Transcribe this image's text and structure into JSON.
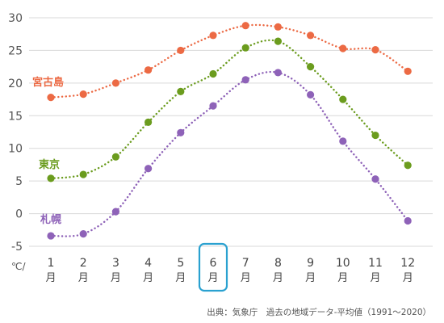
{
  "chart_data": {
    "type": "line",
    "unit_label": "℃/",
    "categories": [
      {
        "num": "1",
        "unit": "月"
      },
      {
        "num": "2",
        "unit": "月"
      },
      {
        "num": "3",
        "unit": "月"
      },
      {
        "num": "4",
        "unit": "月"
      },
      {
        "num": "5",
        "unit": "月"
      },
      {
        "num": "6",
        "unit": "月"
      },
      {
        "num": "7",
        "unit": "月"
      },
      {
        "num": "8",
        "unit": "月"
      },
      {
        "num": "9",
        "unit": "月"
      },
      {
        "num": "10",
        "unit": "月"
      },
      {
        "num": "11",
        "unit": "月"
      },
      {
        "num": "12",
        "unit": "月"
      }
    ],
    "highlight_index": 5,
    "highlight_color": "#2aa1d0",
    "ylim": [
      -5,
      30
    ],
    "yticks": [
      "-5",
      "0",
      "5",
      "10",
      "15",
      "20",
      "25",
      "30"
    ],
    "grid": true,
    "series": [
      {
        "name": "宮古島",
        "color": "#ec6a44",
        "values": [
          17.8,
          18.3,
          20.0,
          22.0,
          25.0,
          27.3,
          28.8,
          28.6,
          27.3,
          25.3,
          25.1,
          21.8
        ]
      },
      {
        "name": "東京",
        "color": "#6b9c1e",
        "values": [
          5.4,
          6.0,
          8.7,
          14.0,
          18.7,
          21.4,
          25.4,
          26.4,
          22.5,
          17.5,
          12.0,
          7.4
        ]
      },
      {
        "name": "札幌",
        "color": "#8e62b8",
        "values": [
          -3.4,
          -3.1,
          0.3,
          6.9,
          12.4,
          16.5,
          20.5,
          21.6,
          18.2,
          11.1,
          5.3,
          -1.1
        ]
      }
    ],
    "source": "出典：気象庁　過去の地域データ-平均値（1991〜2020）"
  }
}
